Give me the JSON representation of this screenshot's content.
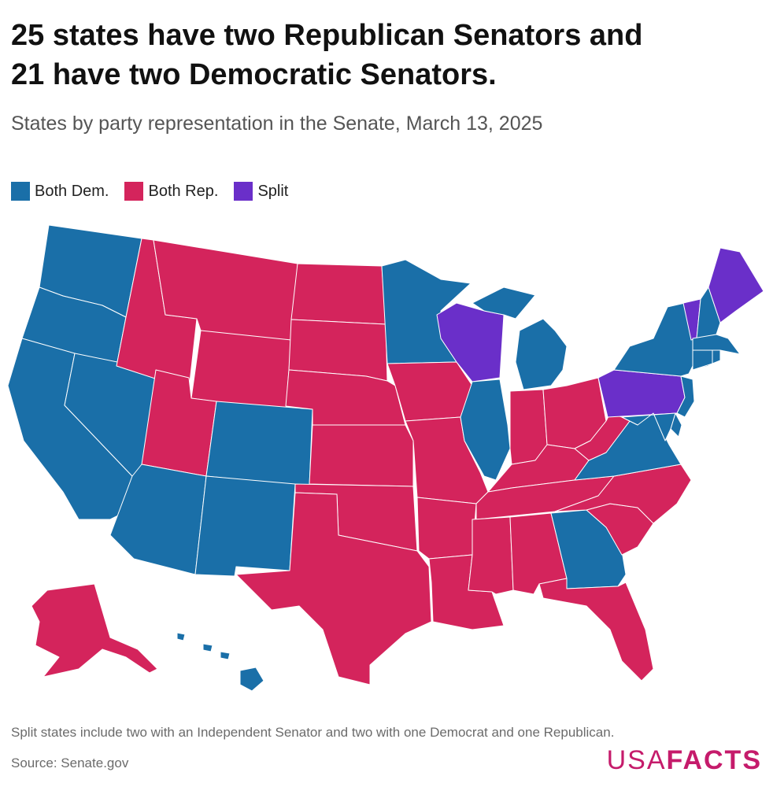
{
  "title_line1": "25 states have two Republican Senators and",
  "title_line2": "21 have two Democratic Senators.",
  "subtitle": "States by party representation in the Senate, March 13, 2025",
  "legend": [
    {
      "key": "dem",
      "label": "Both Dem.",
      "color": "#1a6fa8"
    },
    {
      "key": "rep",
      "label": "Both Rep.",
      "color": "#d4245c"
    },
    {
      "key": "split",
      "label": "Split",
      "color": "#6a2fc9"
    }
  ],
  "colors": {
    "dem": "#1a6fa8",
    "rep": "#d4245c",
    "split": "#6a2fc9"
  },
  "states": {
    "WA": "dem",
    "OR": "dem",
    "CA": "dem",
    "NV": "dem",
    "ID": "rep",
    "MT": "rep",
    "WY": "rep",
    "UT": "rep",
    "AZ": "dem",
    "CO": "dem",
    "NM": "dem",
    "ND": "rep",
    "SD": "rep",
    "NE": "rep",
    "KS": "rep",
    "OK": "rep",
    "TX": "rep",
    "MN": "dem",
    "IA": "rep",
    "MO": "rep",
    "AR": "rep",
    "LA": "rep",
    "WI": "split",
    "IL": "dem",
    "MI": "dem",
    "IN": "rep",
    "OH": "rep",
    "KY": "rep",
    "TN": "rep",
    "MS": "rep",
    "AL": "rep",
    "GA": "dem",
    "FL": "rep",
    "SC": "rep",
    "NC": "rep",
    "VA": "dem",
    "WV": "rep",
    "PA": "split",
    "NY": "dem",
    "VT": "split",
    "NH": "dem",
    "ME": "split",
    "MA": "dem",
    "CT": "dem",
    "RI": "dem",
    "NJ": "dem",
    "DE": "dem",
    "MD": "dem",
    "AK": "rep",
    "HI": "dem"
  },
  "note": "Split states include two with an Independent Senator and two with one Democrat and one Republican.",
  "source": "Source: Senate.gov",
  "logo": {
    "usa": "USA",
    "facts": "FACTS"
  }
}
